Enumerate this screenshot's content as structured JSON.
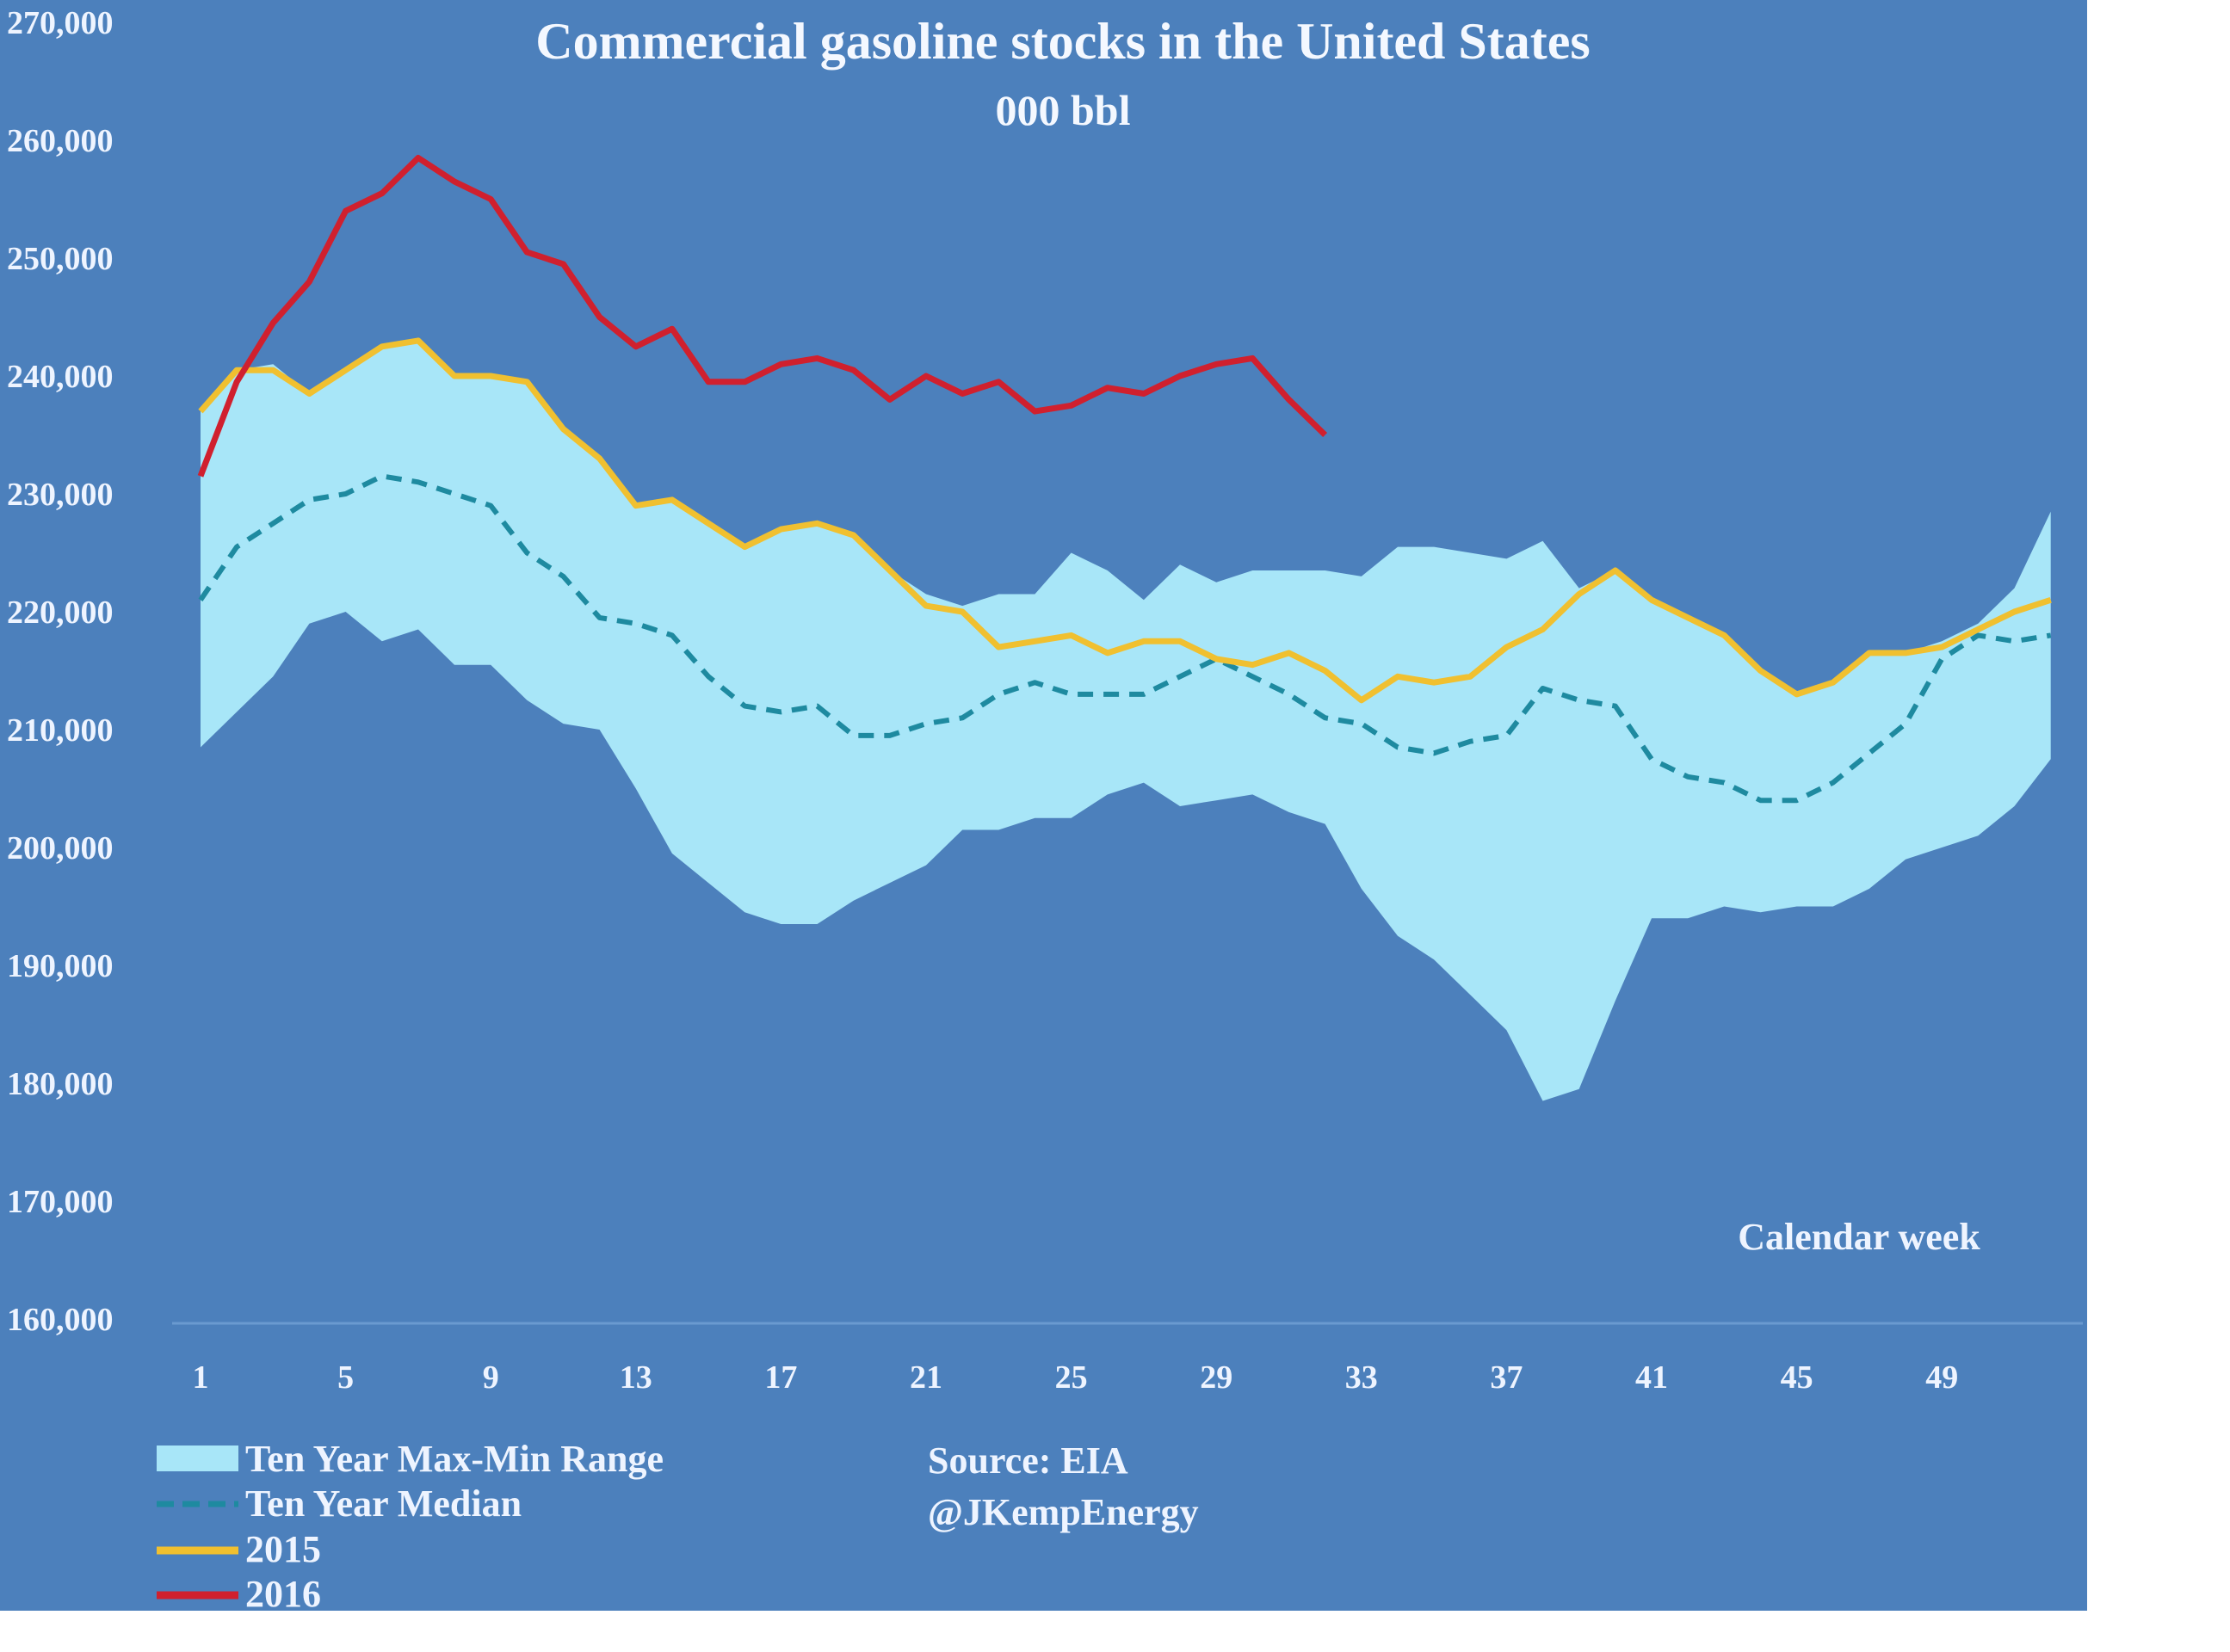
{
  "chart_data": {
    "type": "line",
    "title": "Commercial gasoline stocks in the United States",
    "subtitle": "000 bbl",
    "xlabel": "Calendar week",
    "ylabel": "",
    "ylim": [
      160000,
      270000
    ],
    "xlim": [
      1,
      52
    ],
    "y_ticks": [
      160000,
      170000,
      180000,
      190000,
      200000,
      210000,
      220000,
      230000,
      240000,
      250000,
      260000,
      270000
    ],
    "y_tick_labels": [
      "160,000",
      "170,000",
      "180,000",
      "190,000",
      "200,000",
      "210,000",
      "220,000",
      "230,000",
      "240,000",
      "250,000",
      "260,000",
      "270,000"
    ],
    "x_ticks": [
      1,
      5,
      9,
      13,
      17,
      21,
      25,
      29,
      33,
      37,
      41,
      45,
      49
    ],
    "x_tick_labels": [
      "1",
      "5",
      "9",
      "13",
      "17",
      "21",
      "25",
      "29",
      "33",
      "37",
      "41",
      "45",
      "49"
    ],
    "grid": false,
    "legend_position": "bottom-left",
    "x": [
      1,
      2,
      3,
      4,
      5,
      6,
      7,
      8,
      9,
      10,
      11,
      12,
      13,
      14,
      15,
      16,
      17,
      18,
      19,
      20,
      21,
      22,
      23,
      24,
      25,
      26,
      27,
      28,
      29,
      30,
      31,
      32,
      33,
      34,
      35,
      36,
      37,
      38,
      39,
      40,
      41,
      42,
      43,
      44,
      45,
      46,
      47,
      48,
      49,
      50,
      51,
      52
    ],
    "series": [
      {
        "name": "Ten Year Max-Min Range",
        "kind": "band",
        "color": "#a8e6f8",
        "max": [
          237000,
          240500,
          241000,
          238500,
          240500,
          242500,
          243000,
          240000,
          240000,
          239500,
          235500,
          233000,
          229000,
          229500,
          227500,
          225500,
          227000,
          227500,
          226500,
          223500,
          221500,
          220500,
          221500,
          221500,
          225000,
          223500,
          221000,
          224000,
          222500,
          223500,
          223500,
          223500,
          223000,
          225500,
          225500,
          225000,
          224500,
          226000,
          222000,
          223500,
          221000,
          219500,
          218000,
          215000,
          213000,
          214000,
          216500,
          216500,
          217500,
          219000,
          222000,
          228500
        ],
        "min": [
          208500,
          211500,
          214500,
          219000,
          220000,
          217500,
          218500,
          215500,
          215500,
          212500,
          210500,
          210000,
          205000,
          199500,
          197000,
          194500,
          193500,
          193500,
          195500,
          197000,
          198500,
          201500,
          201500,
          202500,
          202500,
          204500,
          205500,
          203500,
          204000,
          204500,
          203000,
          202000,
          196500,
          192500,
          190500,
          187500,
          184500,
          178500,
          179500,
          187000,
          194000,
          194000,
          195000,
          194500,
          195000,
          195000,
          196500,
          199000,
          200000,
          201000,
          203500,
          207500
        ]
      },
      {
        "name": "Ten Year Median",
        "kind": "dashed",
        "color": "#1e8aa0",
        "values": [
          221000,
          225500,
          227500,
          229500,
          230000,
          231500,
          231000,
          230000,
          229000,
          225000,
          223000,
          219500,
          219000,
          218000,
          214500,
          212000,
          211500,
          212000,
          209500,
          209500,
          210500,
          211000,
          213000,
          214000,
          213000,
          213000,
          213000,
          214500,
          216000,
          214500,
          213000,
          211000,
          210500,
          208500,
          208000,
          209000,
          209500,
          213500,
          212500,
          212000,
          207500,
          206000,
          205500,
          204000,
          204000,
          205500,
          208000,
          210500,
          216000,
          218000,
          217500,
          218000
        ]
      },
      {
        "name": "2015",
        "kind": "line",
        "color": "#f0c030",
        "values": [
          237000,
          240500,
          240500,
          238500,
          240500,
          242500,
          243000,
          240000,
          240000,
          239500,
          235500,
          233000,
          229000,
          229500,
          227500,
          225500,
          227000,
          227500,
          226500,
          223500,
          220500,
          220000,
          217000,
          217500,
          218000,
          216500,
          217500,
          217500,
          216000,
          215500,
          216500,
          215000,
          212500,
          214500,
          214000,
          214500,
          217000,
          218500,
          221500,
          223500,
          221000,
          219500,
          218000,
          215000,
          213000,
          214000,
          216500,
          216500,
          217000,
          218500,
          220000,
          221000
        ]
      },
      {
        "name": "2016",
        "kind": "line",
        "color": "#d0202e",
        "values": [
          231500,
          239500,
          244500,
          248000,
          254000,
          255500,
          258500,
          256500,
          255000,
          250500,
          249500,
          245000,
          242500,
          244000,
          239500,
          239500,
          241000,
          241500,
          240500,
          238000,
          240000,
          238500,
          239500,
          237000,
          237500,
          239000,
          238500,
          240000,
          241000,
          241500,
          238000,
          235000
        ]
      }
    ],
    "annotations": [
      "Source: EIA",
      "@JKempEnergy"
    ]
  },
  "legend": {
    "items": [
      {
        "label": "Ten Year Max-Min Range",
        "color": "#a8e6f8",
        "kind": "swatch"
      },
      {
        "label": "Ten Year Median",
        "color": "#1e8aa0",
        "kind": "dashed"
      },
      {
        "label": "2015",
        "color": "#f0c030",
        "kind": "line"
      },
      {
        "label": "2016",
        "color": "#d0202e",
        "kind": "line"
      }
    ]
  },
  "source": {
    "line1": "Source: EIA",
    "line2": "@JKempEnergy"
  },
  "colors": {
    "background": "#4c80bc",
    "text": "#eef4ff"
  }
}
